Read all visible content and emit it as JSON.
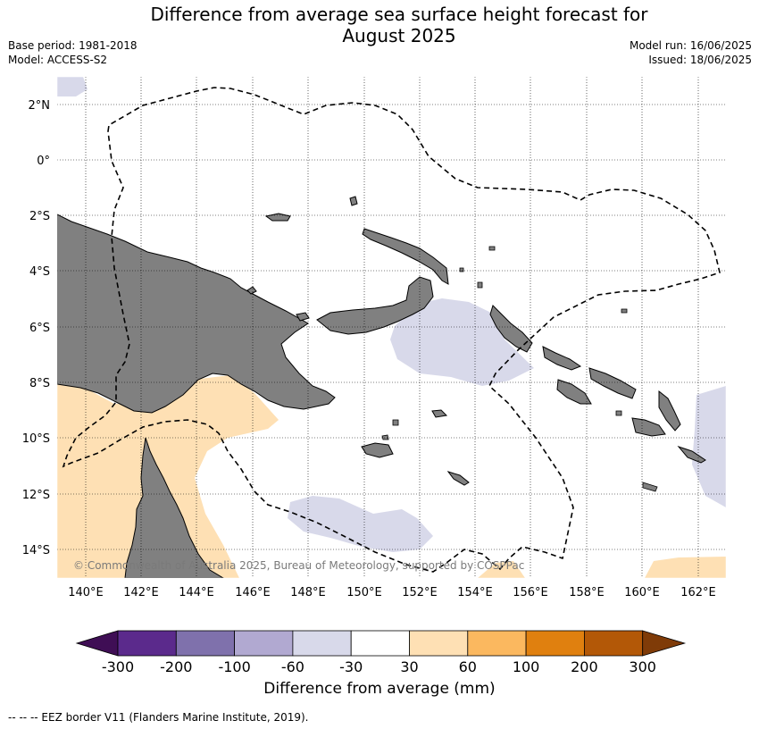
{
  "title_line1": "Difference from average sea surface height forecast for",
  "title_line2": "August 2025",
  "base_period": "Base period: 1981-2018",
  "model": "Model: ACCESS-S2",
  "model_run": "Model run: 16/06/2025",
  "issued": "Issued: 18/06/2025",
  "lat_labels": [
    "2°N",
    "0°",
    "2°S",
    "4°S",
    "6°S",
    "8°S",
    "10°S",
    "12°S",
    "14°S"
  ],
  "lon_labels": [
    "140°E",
    "142°E",
    "144°E",
    "146°E",
    "148°E",
    "150°E",
    "152°E",
    "154°E",
    "156°E",
    "158°E",
    "160°E",
    "162°E"
  ],
  "copyright": "© Commonwealth of Australia 2025, Bureau of Meteorology, supported by COSPPac",
  "colorbar": {
    "label": "Difference from average (mm)",
    "ticks": [
      "-300",
      "-200",
      "-100",
      "-60",
      "-30",
      "30",
      "60",
      "100",
      "200",
      "300"
    ],
    "colors": [
      "#3f0e55",
      "#5b2a8c",
      "#7f71ac",
      "#b1a9d1",
      "#d8d9ea",
      "#ffffff",
      "#fee0b4",
      "#fbb85f",
      "#e0800f",
      "#b35807",
      "#7f3b08"
    ]
  },
  "colors": {
    "land": "#808080",
    "positive": "#fee0b4",
    "negative": "#d8d9ea"
  },
  "footnote": "--  --  -- EEZ border V11 (Flanders Marine Institute, 2019)."
}
